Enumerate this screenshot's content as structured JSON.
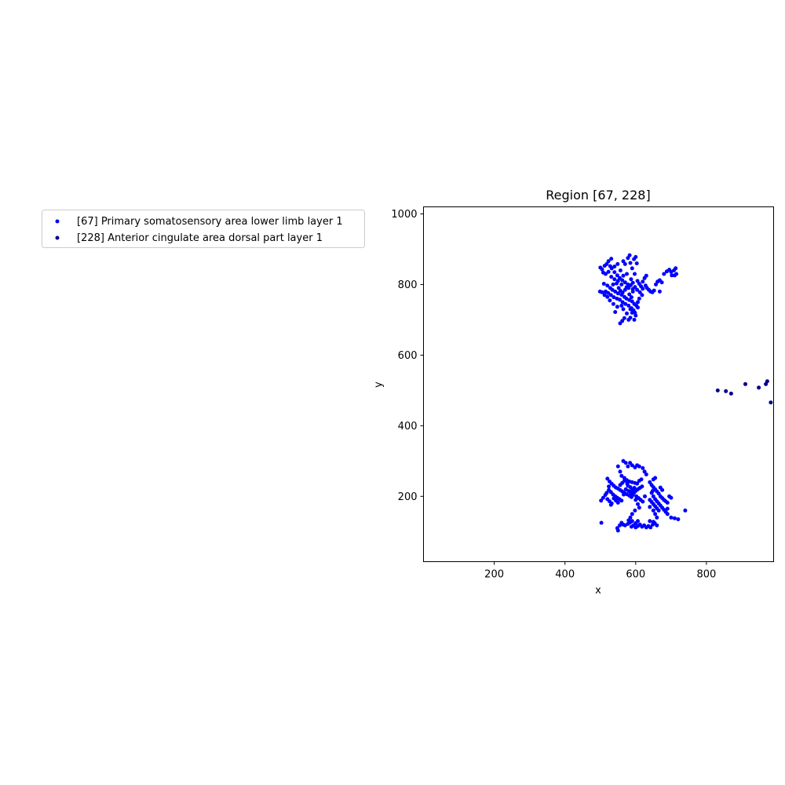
{
  "chart_data": {
    "type": "scatter",
    "title": "Region [67, 228]",
    "xlabel": "x",
    "ylabel": "y",
    "xlim": [
      0,
      990
    ],
    "ylim": [
      15,
      1020
    ],
    "xticks": [
      200,
      400,
      600,
      800
    ],
    "yticks": [
      200,
      400,
      600,
      800,
      1000
    ],
    "grid": false,
    "legend_placement": "outside-left",
    "series": [
      {
        "name": "[67] Primary somatosensory area lower limb layer 1",
        "color": "#0000ff",
        "points": [
          [
            500,
            848
          ],
          [
            505,
            843
          ],
          [
            512,
            853
          ],
          [
            518,
            858
          ],
          [
            523,
            866
          ],
          [
            528,
            852
          ],
          [
            532,
            846
          ],
          [
            540,
            851
          ],
          [
            549,
            858
          ],
          [
            557,
            840
          ],
          [
            565,
            866
          ],
          [
            570,
            858
          ],
          [
            578,
            875
          ],
          [
            583,
            883
          ],
          [
            585,
            861
          ],
          [
            590,
            846
          ],
          [
            595,
            872
          ],
          [
            600,
            878
          ],
          [
            603,
            860
          ],
          [
            531,
            873
          ],
          [
            508,
            834
          ],
          [
            515,
            830
          ],
          [
            523,
            836
          ],
          [
            531,
            822
          ],
          [
            540,
            835
          ],
          [
            548,
            826
          ],
          [
            555,
            818
          ],
          [
            562,
            812
          ],
          [
            570,
            806
          ],
          [
            578,
            800
          ],
          [
            586,
            798
          ],
          [
            592,
            787
          ],
          [
            598,
            793
          ],
          [
            604,
            785
          ],
          [
            510,
            802
          ],
          [
            520,
            797
          ],
          [
            528,
            790
          ],
          [
            534,
            785
          ],
          [
            542,
            780
          ],
          [
            550,
            775
          ],
          [
            560,
            771
          ],
          [
            568,
            765
          ],
          [
            574,
            760
          ],
          [
            582,
            756
          ],
          [
            590,
            752
          ],
          [
            596,
            745
          ],
          [
            602,
            740
          ],
          [
            606,
            735
          ],
          [
            515,
            780
          ],
          [
            522,
            776
          ],
          [
            530,
            770
          ],
          [
            538,
            764
          ],
          [
            547,
            760
          ],
          [
            555,
            757
          ],
          [
            563,
            750
          ],
          [
            571,
            745
          ],
          [
            580,
            740
          ],
          [
            588,
            733
          ],
          [
            594,
            727
          ],
          [
            598,
            720
          ],
          [
            600,
            712
          ],
          [
            585,
            706
          ],
          [
            580,
            700
          ],
          [
            575,
            718
          ],
          [
            568,
            705
          ],
          [
            562,
            697
          ],
          [
            556,
            690
          ],
          [
            548,
            737
          ],
          [
            542,
            722
          ],
          [
            537,
            745
          ],
          [
            527,
            755
          ],
          [
            520,
            765
          ],
          [
            512,
            770
          ],
          [
            505,
            778
          ],
          [
            499,
            780
          ],
          [
            560,
            800
          ],
          [
            565,
            825
          ],
          [
            575,
            830
          ],
          [
            587,
            815
          ],
          [
            592,
            805
          ],
          [
            597,
            830
          ],
          [
            605,
            810
          ],
          [
            610,
            802
          ],
          [
            615,
            795
          ],
          [
            620,
            808
          ],
          [
            625,
            818
          ],
          [
            630,
            825
          ],
          [
            628,
            797
          ],
          [
            632,
            790
          ],
          [
            637,
            785
          ],
          [
            642,
            780
          ],
          [
            647,
            778
          ],
          [
            652,
            783
          ],
          [
            620,
            788
          ],
          [
            612,
            778
          ],
          [
            618,
            770
          ],
          [
            610,
            760
          ],
          [
            606,
            750
          ],
          [
            657,
            800
          ],
          [
            662,
            808
          ],
          [
            668,
            812
          ],
          [
            674,
            806
          ],
          [
            668,
            780
          ],
          [
            680,
            830
          ],
          [
            688,
            837
          ],
          [
            695,
            842
          ],
          [
            700,
            836
          ],
          [
            708,
            840
          ],
          [
            713,
            846
          ],
          [
            710,
            826
          ],
          [
            715,
            830
          ],
          [
            702,
            826
          ],
          [
            570,
            785
          ],
          [
            574,
            792
          ],
          [
            563,
            777
          ],
          [
            552,
            790
          ],
          [
            546,
            803
          ],
          [
            540,
            815
          ],
          [
            536,
            800
          ],
          [
            550,
            810
          ],
          [
            557,
            782
          ],
          [
            582,
            772
          ],
          [
            588,
            764
          ],
          [
            592,
            780
          ],
          [
            580,
            790
          ],
          [
            590,
            720
          ],
          [
            585,
            730
          ],
          [
            560,
            740
          ],
          [
            565,
            730
          ],
          [
            596,
            700
          ],
          [
            565,
            300
          ],
          [
            572,
            295
          ],
          [
            578,
            285
          ],
          [
            584,
            295
          ],
          [
            590,
            288
          ],
          [
            598,
            282
          ],
          [
            604,
            288
          ],
          [
            610,
            285
          ],
          [
            620,
            280
          ],
          [
            625,
            270
          ],
          [
            630,
            262
          ],
          [
            550,
            285
          ],
          [
            556,
            270
          ],
          [
            560,
            258
          ],
          [
            568,
            252
          ],
          [
            575,
            246
          ],
          [
            582,
            242
          ],
          [
            590,
            240
          ],
          [
            598,
            238
          ],
          [
            604,
            236
          ],
          [
            610,
            244
          ],
          [
            616,
            248
          ],
          [
            520,
            250
          ],
          [
            526,
            242
          ],
          [
            532,
            236
          ],
          [
            538,
            230
          ],
          [
            544,
            225
          ],
          [
            550,
            222
          ],
          [
            556,
            218
          ],
          [
            562,
            214
          ],
          [
            568,
            210
          ],
          [
            575,
            206
          ],
          [
            582,
            202
          ],
          [
            588,
            198
          ],
          [
            595,
            210
          ],
          [
            600,
            215
          ],
          [
            606,
            220
          ],
          [
            612,
            224
          ],
          [
            618,
            228
          ],
          [
            524,
            218
          ],
          [
            530,
            212
          ],
          [
            536,
            205
          ],
          [
            542,
            200
          ],
          [
            548,
            196
          ],
          [
            554,
            192
          ],
          [
            560,
            188
          ],
          [
            566,
            205
          ],
          [
            572,
            220
          ],
          [
            578,
            230
          ],
          [
            585,
            226
          ],
          [
            590,
            218
          ],
          [
            596,
            224
          ],
          [
            602,
            200
          ],
          [
            608,
            195
          ],
          [
            614,
            190
          ],
          [
            620,
            185
          ],
          [
            626,
            200
          ],
          [
            520,
            192
          ],
          [
            526,
            186
          ],
          [
            532,
            180
          ],
          [
            538,
            194
          ],
          [
            544,
            188
          ],
          [
            550,
            182
          ],
          [
            556,
            232
          ],
          [
            562,
            238
          ],
          [
            568,
            244
          ],
          [
            576,
            236
          ],
          [
            580,
            215
          ],
          [
            586,
            210
          ],
          [
            592,
            204
          ],
          [
            600,
            190
          ],
          [
            606,
            178
          ],
          [
            610,
            168
          ],
          [
            598,
            160
          ],
          [
            590,
            150
          ],
          [
            585,
            140
          ],
          [
            640,
            240
          ],
          [
            645,
            232
          ],
          [
            650,
            226
          ],
          [
            655,
            220
          ],
          [
            660,
            214
          ],
          [
            665,
            208
          ],
          [
            670,
            200
          ],
          [
            675,
            195
          ],
          [
            680,
            190
          ],
          [
            685,
            186
          ],
          [
            690,
            182
          ],
          [
            695,
            200
          ],
          [
            700,
            196
          ],
          [
            645,
            210
          ],
          [
            650,
            200
          ],
          [
            655,
            192
          ],
          [
            660,
            186
          ],
          [
            665,
            180
          ],
          [
            670,
            174
          ],
          [
            675,
            168
          ],
          [
            680,
            162
          ],
          [
            685,
            156
          ],
          [
            690,
            150
          ],
          [
            640,
            190
          ],
          [
            645,
            184
          ],
          [
            650,
            178
          ],
          [
            655,
            172
          ],
          [
            660,
            166
          ],
          [
            665,
            160
          ],
          [
            640,
            170
          ],
          [
            650,
            160
          ],
          [
            655,
            150
          ],
          [
            660,
            140
          ],
          [
            670,
            225
          ],
          [
            675,
            218
          ],
          [
            650,
            248
          ],
          [
            655,
            252
          ],
          [
            648,
            215
          ],
          [
            690,
            165
          ],
          [
            700,
            140
          ],
          [
            710,
            138
          ],
          [
            720,
            135
          ],
          [
            740,
            160
          ],
          [
            502,
            188
          ],
          [
            508,
            196
          ],
          [
            514,
            204
          ],
          [
            518,
            210
          ],
          [
            524,
            228
          ],
          [
            530,
            176
          ],
          [
            503,
            125
          ],
          [
            548,
            110
          ],
          [
            550,
            103
          ],
          [
            555,
            118
          ],
          [
            560,
            125
          ],
          [
            565,
            120
          ],
          [
            570,
            118
          ],
          [
            578,
            122
          ],
          [
            584,
            126
          ],
          [
            588,
            114
          ],
          [
            594,
            118
          ],
          [
            600,
            112
          ],
          [
            606,
            116
          ],
          [
            612,
            120
          ],
          [
            618,
            114
          ],
          [
            624,
            118
          ],
          [
            630,
            112
          ],
          [
            636,
            116
          ],
          [
            642,
            112
          ],
          [
            648,
            120
          ],
          [
            654,
            124
          ],
          [
            660,
            118
          ],
          [
            606,
            130
          ],
          [
            600,
            124
          ],
          [
            590,
            130
          ],
          [
            580,
            132
          ],
          [
            640,
            130
          ],
          [
            650,
            128
          ]
        ]
      },
      {
        "name": "[228] Anterior cingulate area dorsal part layer 1",
        "color": "#00008b",
        "points": [
          [
            832,
            500
          ],
          [
            855,
            498
          ],
          [
            870,
            491
          ],
          [
            910,
            518
          ],
          [
            948,
            508
          ],
          [
            968,
            518
          ],
          [
            972,
            526
          ],
          [
            982,
            466
          ]
        ]
      }
    ]
  }
}
